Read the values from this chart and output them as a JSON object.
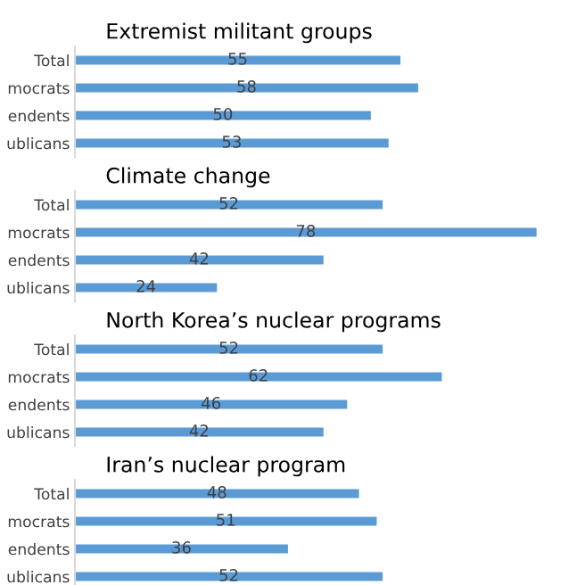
{
  "chart_data": [
    {
      "type": "bar",
      "orientation": "horizontal",
      "title": "Extremist militant groups",
      "categories": [
        "Total",
        "mocrats",
        "endents",
        "ublicans"
      ],
      "values": [
        55,
        58,
        50,
        53
      ],
      "color": "#5b9bd5",
      "data_labels": true,
      "tick_labels": "y",
      "grid": false,
      "legend": false
    },
    {
      "type": "bar",
      "orientation": "horizontal",
      "title": "Climate change",
      "categories": [
        "Total",
        "mocrats",
        "endents",
        "ublicans"
      ],
      "values": [
        52,
        78,
        42,
        24
      ],
      "color": "#5b9bd5",
      "data_labels": true,
      "tick_labels": "y",
      "grid": false,
      "legend": false
    },
    {
      "type": "bar",
      "orientation": "horizontal",
      "title": "North Korea’s nuclear programs",
      "categories": [
        "Total",
        "mocrats",
        "endents",
        "ublicans"
      ],
      "values": [
        52,
        62,
        46,
        42
      ],
      "color": "#5b9bd5",
      "data_labels": true,
      "tick_labels": "y",
      "grid": false,
      "legend": false
    },
    {
      "type": "bar",
      "orientation": "horizontal",
      "title": "Iran’s nuclear program",
      "categories": [
        "Total",
        "mocrats",
        "endents",
        "ublicans"
      ],
      "values": [
        48,
        51,
        36,
        52
      ],
      "color": "#5b9bd5",
      "data_labels": true,
      "tick_labels": "y",
      "grid": false,
      "legend": false
    }
  ]
}
